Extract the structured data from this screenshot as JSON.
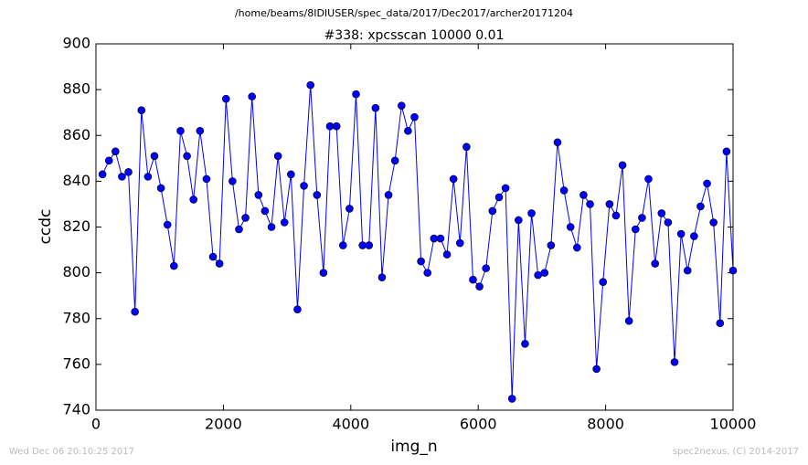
{
  "chart_data": {
    "type": "line",
    "suptitle": "/home/beams/8IDIUSER/spec_data/2017/Dec2017/archer20171204",
    "title": "#338: xpcsscan 10000 0.01",
    "x_label": "img_n",
    "y_label": "ccdc",
    "footer_left": "Wed Dec 06 20:10:25 2017",
    "footer_right": "spec2nexus, (C) 2014-2017",
    "x": [
      102,
      204,
      306,
      408,
      510,
      612,
      714,
      816,
      918,
      1020,
      1122,
      1224,
      1327,
      1429,
      1531,
      1633,
      1735,
      1837,
      1939,
      2041,
      2143,
      2245,
      2347,
      2449,
      2551,
      2653,
      2755,
      2857,
      2959,
      3061,
      3163,
      3265,
      3367,
      3469,
      3571,
      3673,
      3776,
      3878,
      3980,
      4082,
      4184,
      4286,
      4388,
      4490,
      4592,
      4694,
      4796,
      4898,
      5000,
      5102,
      5204,
      5306,
      5408,
      5510,
      5612,
      5714,
      5816,
      5918,
      6020,
      6122,
      6224,
      6327,
      6429,
      6531,
      6633,
      6735,
      6837,
      6939,
      7041,
      7143,
      7245,
      7347,
      7449,
      7551,
      7653,
      7755,
      7857,
      7959,
      8061,
      8163,
      8265,
      8367,
      8469,
      8571,
      8673,
      8776,
      8878,
      8980,
      9082,
      9184,
      9286,
      9388,
      9490,
      9592,
      9694,
      9796,
      9898,
      10000
    ],
    "series": [
      {
        "name": "ccdc",
        "color": "#0000ff",
        "values": [
          843,
          849,
          853,
          842,
          844,
          783,
          871,
          842,
          851,
          837,
          821,
          803,
          862,
          851,
          832,
          862,
          841,
          807,
          804,
          876,
          840,
          819,
          824,
          877,
          834,
          827,
          820,
          851,
          822,
          843,
          784,
          838,
          882,
          834,
          800,
          864,
          864,
          812,
          828,
          878,
          812,
          812,
          872,
          798,
          834,
          849,
          873,
          862,
          868,
          805,
          800,
          815,
          815,
          808,
          841,
          813,
          855,
          797,
          794,
          802,
          827,
          833,
          837,
          745,
          823,
          769,
          826,
          799,
          800,
          812,
          857,
          836,
          820,
          811,
          834,
          830,
          758,
          796,
          830,
          825,
          847,
          779,
          819,
          824,
          841,
          804,
          826,
          822,
          761,
          817,
          801,
          816,
          829,
          839,
          822,
          778,
          853,
          801
        ]
      }
    ],
    "xlim": [
      0,
      10000
    ],
    "xticks": [
      0,
      2000,
      4000,
      6000,
      8000,
      10000
    ],
    "ylim": [
      740,
      900
    ],
    "yticks": [
      740,
      760,
      780,
      800,
      820,
      840,
      860,
      880,
      900
    ]
  }
}
